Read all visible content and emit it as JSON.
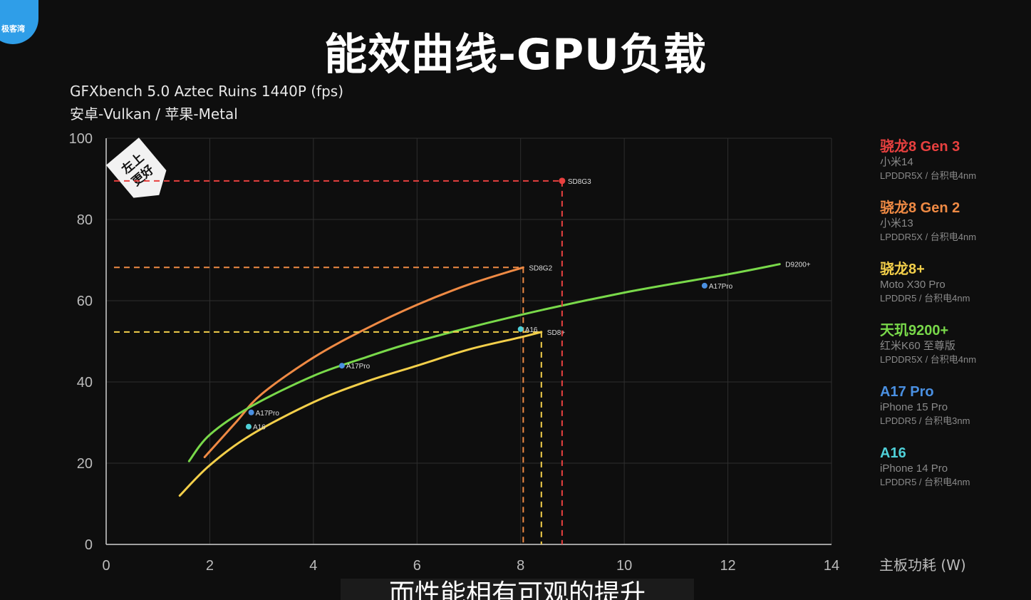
{
  "logo": {
    "text": "极客湾"
  },
  "title": "能效曲线-GPU负载",
  "subtitle1": "GFXbench 5.0 Aztec Ruins 1440P (fps)",
  "subtitle2": "安卓-Vulkan / 苹果-Metal",
  "badge": {
    "line1": "左上",
    "line2": "更好"
  },
  "caption": "而性能相有可观的提升",
  "colors": {
    "sd8g3": "#e8403f",
    "sd8g2": "#ef8a44",
    "sd8plus": "#f3cf4a",
    "d9200": "#79d94a",
    "a17": "#4a90e2",
    "a16": "#4fd0d8",
    "grid": "#2e2e2e",
    "axis": "#d0d0d0"
  },
  "legend": [
    {
      "chip": "骁龙8 Gen 3",
      "device": "小米14",
      "memory": "LPDDR5X / 台积电4nm",
      "color": "#e8403f"
    },
    {
      "chip": "骁龙8 Gen 2",
      "device": "小米13",
      "memory": "LPDDR5X / 台积电4nm",
      "color": "#ef8a44"
    },
    {
      "chip": "骁龙8+",
      "device": "Moto X30 Pro",
      "memory": "LPDDR5 / 台积电4nm",
      "color": "#f3cf4a"
    },
    {
      "chip": "天玑9200+",
      "device": "红米K60 至尊版",
      "memory": "LPDDR5X / 台积电4nm",
      "color": "#79d94a"
    },
    {
      "chip": "A17 Pro",
      "device": "iPhone 15 Pro",
      "memory": "LPDDR5 / 台积电3nm",
      "color": "#4a90e2"
    },
    {
      "chip": "A16",
      "device": "iPhone 14 Pro",
      "memory": "LPDDR5 / 台积电4nm",
      "color": "#4fd0d8"
    }
  ],
  "chart_data": {
    "type": "line",
    "xlabel": "主板功耗 (W)",
    "ylabel": "",
    "xlim": [
      0,
      14
    ],
    "ylim": [
      0,
      100
    ],
    "xticks": [
      0,
      2,
      4,
      6,
      8,
      10,
      12,
      14
    ],
    "yticks": [
      0,
      20,
      40,
      60,
      80,
      100
    ],
    "grid": true,
    "series": [
      {
        "name": "SD8G2",
        "color": "#ef8a44",
        "end_label": "SD8G2",
        "points": [
          [
            1.9,
            21.5
          ],
          [
            2.5,
            30
          ],
          [
            3.0,
            37
          ],
          [
            4.0,
            46
          ],
          [
            5.0,
            53
          ],
          [
            6.0,
            59
          ],
          [
            7.0,
            64
          ],
          [
            8.05,
            68.2
          ]
        ],
        "guide": true
      },
      {
        "name": "D9200+",
        "color": "#79d94a",
        "end_label": "D9200+",
        "points": [
          [
            1.6,
            20.5
          ],
          [
            2.0,
            27
          ],
          [
            2.8,
            34
          ],
          [
            4.0,
            41.5
          ],
          [
            5.0,
            46
          ],
          [
            6.0,
            50
          ],
          [
            8.0,
            56.5
          ],
          [
            10.0,
            62
          ],
          [
            12.0,
            66.5
          ],
          [
            13.0,
            69
          ]
        ],
        "guide": false
      },
      {
        "name": "SD8+",
        "color": "#f3cf4a",
        "end_label": "SD8+",
        "points": [
          [
            1.42,
            12
          ],
          [
            2.0,
            19.5
          ],
          [
            2.8,
            27
          ],
          [
            4.0,
            35
          ],
          [
            5.0,
            40
          ],
          [
            6.0,
            44
          ],
          [
            7.0,
            48
          ],
          [
            8.0,
            51
          ],
          [
            8.4,
            52.3
          ]
        ],
        "guide": true
      },
      {
        "name": "SD8G3",
        "color": "#e8403f",
        "end_label": "SD8G3",
        "points": [
          [
            8.8,
            89.5
          ]
        ],
        "guide": true
      }
    ],
    "points": [
      {
        "label": "A17Pro",
        "x": 11.55,
        "y": 63.7,
        "color": "#4a90e2"
      },
      {
        "label": "A17Pro",
        "x": 4.55,
        "y": 44.0,
        "color": "#4a90e2"
      },
      {
        "label": "A17Pro",
        "x": 2.8,
        "y": 32.5,
        "color": "#4a90e2"
      },
      {
        "label": "A16",
        "x": 8.0,
        "y": 53.0,
        "color": "#4fd0d8"
      },
      {
        "label": "A16",
        "x": 2.75,
        "y": 29.0,
        "color": "#4fd0d8"
      }
    ]
  }
}
